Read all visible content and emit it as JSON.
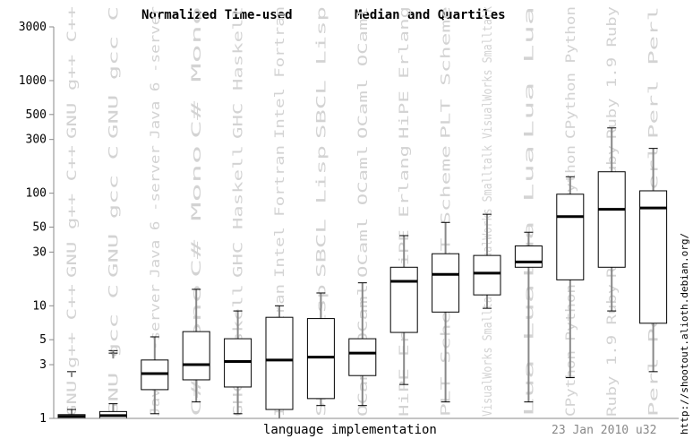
{
  "chart_data": {
    "type": "box",
    "title_left": "Normalized Time-used",
    "title_right": "Median and Quartiles",
    "xlabel": "language implementation",
    "date_label": "23 Jan 2010 u32",
    "source_label": "http://shootout.alioth.debian.org/",
    "y_scale": "log",
    "ylim": [
      1,
      3000
    ],
    "y_ticks": [
      {
        "value": 1,
        "label": "1"
      },
      {
        "value": 3,
        "label": "3"
      },
      {
        "value": 5,
        "label": "5"
      },
      {
        "value": 10,
        "label": "10"
      },
      {
        "value": 30,
        "label": "30"
      },
      {
        "value": 50,
        "label": "50"
      },
      {
        "value": 100,
        "label": "100"
      },
      {
        "value": 300,
        "label": "300"
      },
      {
        "value": 500,
        "label": "500"
      },
      {
        "value": 1000,
        "label": "1000"
      },
      {
        "value": 3000,
        "label": "3000"
      }
    ],
    "series": [
      {
        "name": "GNU g++ C++",
        "min": 1.0,
        "q1": 1.0,
        "median": 1.04,
        "q3": 1.08,
        "max": 1.2,
        "outliers": [
          2.6
        ]
      },
      {
        "name": "GNU gcc C",
        "min": 1.0,
        "q1": 1.0,
        "median": 1.06,
        "q3": 1.15,
        "max": 1.35,
        "outliers": [
          4.0,
          3.8
        ]
      },
      {
        "name": "Java 6 -server",
        "min": 1.1,
        "q1": 1.8,
        "median": 2.5,
        "q3": 3.3,
        "max": 5.3,
        "outliers": []
      },
      {
        "name": "C# Mono",
        "min": 1.4,
        "q1": 2.2,
        "median": 3.0,
        "q3": 5.9,
        "max": 14.0,
        "outliers": []
      },
      {
        "name": "GHC Haskell",
        "min": 1.1,
        "q1": 1.9,
        "median": 3.2,
        "q3": 5.1,
        "max": 9.0,
        "outliers": []
      },
      {
        "name": "Intel Fortran",
        "min": 1.0,
        "q1": 1.2,
        "median": 3.3,
        "q3": 7.9,
        "max": 10.0,
        "outliers": []
      },
      {
        "name": "SBCL Lisp",
        "min": 1.3,
        "q1": 1.5,
        "median": 3.5,
        "q3": 7.7,
        "max": 13.0,
        "outliers": []
      },
      {
        "name": "OCaml OCaml",
        "min": 1.3,
        "q1": 2.4,
        "median": 3.8,
        "q3": 5.1,
        "max": 16.0,
        "outliers": []
      },
      {
        "name": "HiPE Erlang",
        "min": 2.0,
        "q1": 5.8,
        "median": 16.5,
        "q3": 22.0,
        "max": 42.0,
        "outliers": []
      },
      {
        "name": "PLT Scheme",
        "min": 1.4,
        "q1": 8.8,
        "median": 19.0,
        "q3": 29.0,
        "max": 55.0,
        "outliers": []
      },
      {
        "name": "VisualWorks Smalltalk",
        "min": 9.5,
        "q1": 12.5,
        "median": 19.5,
        "q3": 28.0,
        "max": 65.0,
        "outliers": []
      },
      {
        "name": "Lua Lua",
        "min": 1.4,
        "q1": 22.0,
        "median": 24.5,
        "q3": 34.0,
        "max": 45.0,
        "outliers": []
      },
      {
        "name": "CPython Python",
        "min": 2.3,
        "q1": 17.0,
        "median": 62.0,
        "q3": 98.0,
        "max": 140.0,
        "outliers": []
      },
      {
        "name": "Ruby 1.9 Ruby",
        "min": 9.0,
        "q1": 22.0,
        "median": 72.0,
        "q3": 155.0,
        "max": 380.0,
        "outliers": []
      },
      {
        "name": "Perl Perl",
        "min": 2.6,
        "q1": 7.0,
        "median": 74.0,
        "q3": 105.0,
        "max": 250.0,
        "outliers": []
      }
    ]
  }
}
